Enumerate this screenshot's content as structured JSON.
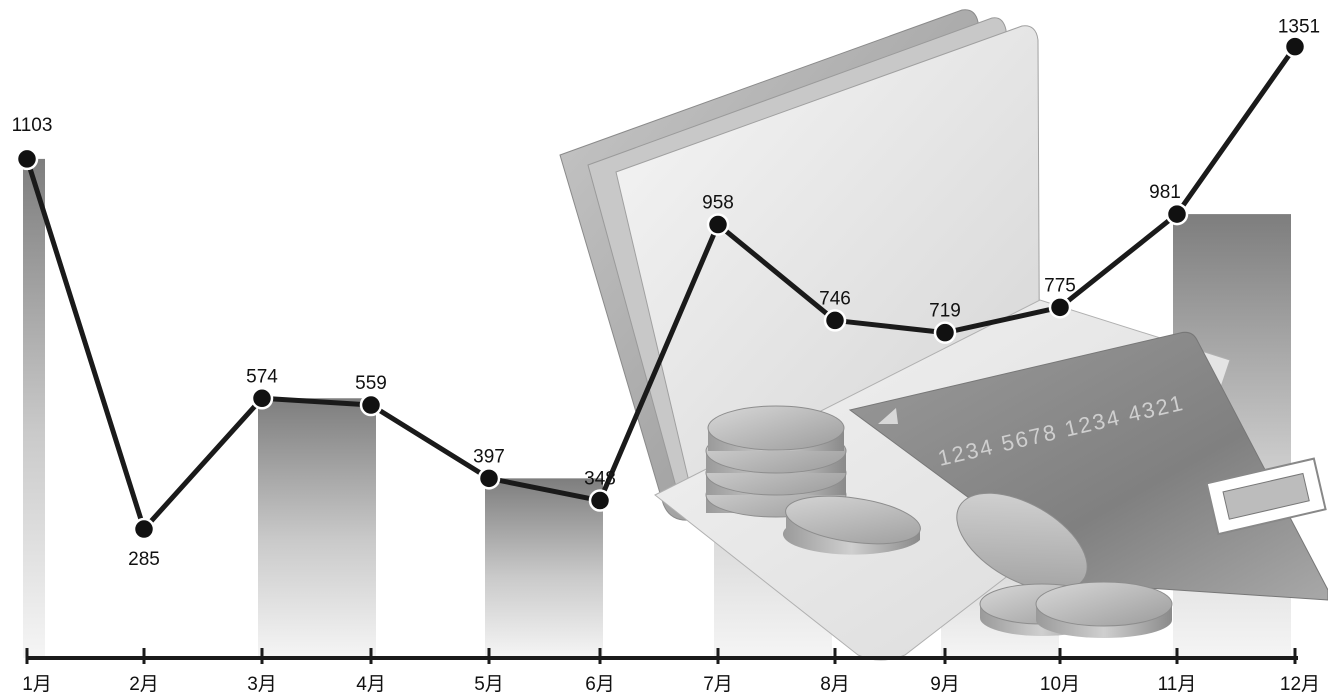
{
  "chart_data": {
    "type": "line",
    "categories": [
      "1月",
      "2月",
      "3月",
      "4月",
      "5月",
      "6月",
      "7月",
      "8月",
      "9月",
      "10月",
      "11月",
      "12月"
    ],
    "values": [
      1103,
      285,
      574,
      559,
      397,
      348,
      958,
      746,
      719,
      775,
      981,
      1351
    ],
    "title": "",
    "xlabel": "",
    "ylabel": "",
    "grid": false,
    "legend": "none",
    "bars_under_points": true
  },
  "illustration": {
    "card_number": "1234  5678  1234  4321"
  },
  "colors": {
    "line": "#1a1a1a",
    "marker_fill": "#111111",
    "marker_stroke": "#ffffff",
    "axis": "#1a1a1a",
    "bar_top": "#7a7a7a",
    "bar_bottom": "#f2f2f2"
  }
}
